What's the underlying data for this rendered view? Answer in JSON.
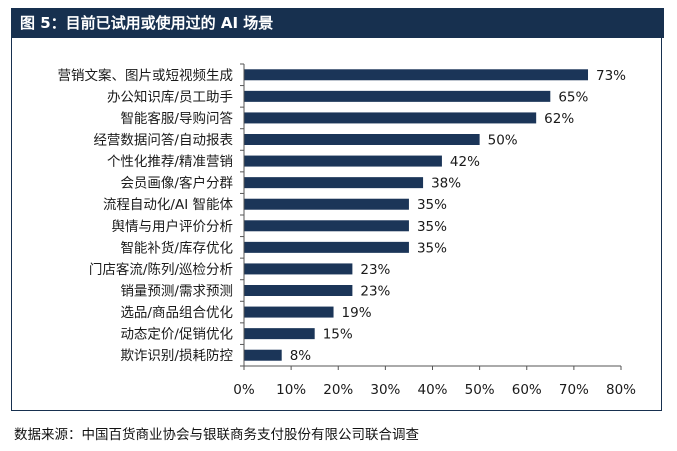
{
  "figure": {
    "title": "图 5：目前已试用或使用过的 AI 场景",
    "source": "数据来源：中国百货商业协会与银联商务支付股份有限公司联合调查"
  },
  "colors": {
    "bar": "#1b3558",
    "title_bg": "#17304f",
    "axis": "#555555"
  },
  "chart_data": {
    "type": "bar",
    "orientation": "horizontal",
    "categories": [
      "营销文案、图片或短视频生成",
      "办公知识库/员工助手",
      "智能客服/导购问答",
      "经营数据问答/自动报表",
      "个性化推荐/精准营销",
      "会员画像/客户分群",
      "流程自动化/AI 智能体",
      "舆情与用户评价分析",
      "智能补货/库存优化",
      "门店客流/陈列/巡检分析",
      "销量预测/需求预测",
      "选品/商品组合优化",
      "动态定价/促销优化",
      "欺诈识别/损耗防控"
    ],
    "values": [
      73,
      65,
      62,
      50,
      42,
      38,
      35,
      35,
      35,
      23,
      23,
      19,
      15,
      8
    ],
    "value_labels": [
      "73%",
      "65%",
      "62%",
      "50%",
      "42%",
      "38%",
      "35%",
      "35%",
      "35%",
      "23%",
      "23%",
      "19%",
      "15%",
      "8%"
    ],
    "xlim": [
      0,
      80
    ],
    "xticks": [
      0,
      10,
      20,
      30,
      40,
      50,
      60,
      70,
      80
    ],
    "xtick_labels": [
      "0%",
      "10%",
      "20%",
      "30%",
      "40%",
      "50%",
      "60%",
      "70%",
      "80%"
    ],
    "grid": false,
    "legend": "none"
  }
}
